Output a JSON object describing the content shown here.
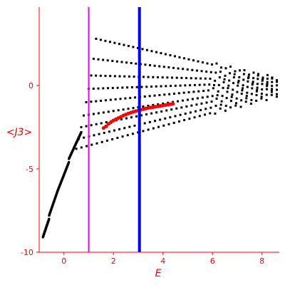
{
  "chart_data": {
    "type": "scatter",
    "title": "",
    "xlabel": "E",
    "ylabel": "<J3>",
    "xlim": [
      -1,
      8.7
    ],
    "ylim": [
      -10,
      4.7
    ],
    "xticks": [
      0,
      2,
      4,
      6,
      8
    ],
    "yticks": [
      0,
      -5,
      -10
    ],
    "grid": false,
    "vlines": [
      {
        "x": 1.0,
        "color": "#ff00ff"
      },
      {
        "x": 3.05,
        "color": "#0000ff"
      }
    ],
    "series": [
      {
        "color": "#000000",
        "marker": "square",
        "bands": [
          {
            "x_start": -0.85,
            "x_end": -0.6,
            "y_start": -9.1,
            "y_end": -8.0
          },
          {
            "x_start": -0.6,
            "x_end": -0.25,
            "y_start": -7.8,
            "y_end": -6.3
          },
          {
            "x_start": -0.25,
            "x_end": 0.2,
            "y_start": -6.3,
            "y_end": -4.6
          },
          {
            "x_start": 0.2,
            "x_end": 0.7,
            "y_start": -4.4,
            "y_end": -2.8
          },
          {
            "x_start": 0.5,
            "x_end": 8.6,
            "y_start": -3.8,
            "y_end": -0.6
          },
          {
            "x_start": 0.6,
            "x_end": 8.6,
            "y_start": -3.2,
            "y_end": -0.4
          },
          {
            "x_start": 0.7,
            "x_end": 8.6,
            "y_start": -2.5,
            "y_end": -0.2
          },
          {
            "x_start": 0.8,
            "x_end": 8.6,
            "y_start": -1.8,
            "y_end": -0.05
          },
          {
            "x_start": 0.9,
            "x_end": 8.6,
            "y_start": -1.0,
            "y_end": 0.1
          },
          {
            "x_start": 1.0,
            "x_end": 8.6,
            "y_start": -0.2,
            "y_end": 0.2
          },
          {
            "x_start": 1.1,
            "x_end": 8.6,
            "y_start": 0.6,
            "y_end": 0.3
          },
          {
            "x_start": 1.2,
            "x_end": 8.6,
            "y_start": 1.6,
            "y_end": 0.35
          },
          {
            "x_start": 1.3,
            "x_end": 8.6,
            "y_start": 2.8,
            "y_end": 0.4
          }
        ]
      },
      {
        "color": "#ff0000",
        "marker": "circle",
        "points": [
          [
            1.6,
            -2.55
          ],
          [
            1.8,
            -2.3
          ],
          [
            2.0,
            -2.1
          ],
          [
            2.2,
            -1.95
          ],
          [
            2.4,
            -1.8
          ],
          [
            2.6,
            -1.68
          ],
          [
            2.8,
            -1.58
          ],
          [
            3.0,
            -1.5
          ],
          [
            3.2,
            -1.42
          ],
          [
            3.4,
            -1.35
          ],
          [
            3.6,
            -1.3
          ],
          [
            3.8,
            -1.25
          ],
          [
            4.0,
            -1.2
          ],
          [
            4.2,
            -1.15
          ],
          [
            4.4,
            -1.1
          ],
          [
            1.7,
            -2.45
          ],
          [
            1.9,
            -2.2
          ],
          [
            2.1,
            -2.02
          ],
          [
            2.3,
            -1.88
          ],
          [
            2.5,
            -1.74
          ],
          [
            2.7,
            -1.63
          ],
          [
            2.9,
            -1.54
          ],
          [
            3.1,
            -1.46
          ],
          [
            3.3,
            -1.38
          ],
          [
            3.5,
            -1.32
          ],
          [
            3.7,
            -1.27
          ],
          [
            3.9,
            -1.22
          ],
          [
            4.1,
            -1.17
          ],
          [
            4.3,
            -1.12
          ]
        ]
      }
    ]
  }
}
